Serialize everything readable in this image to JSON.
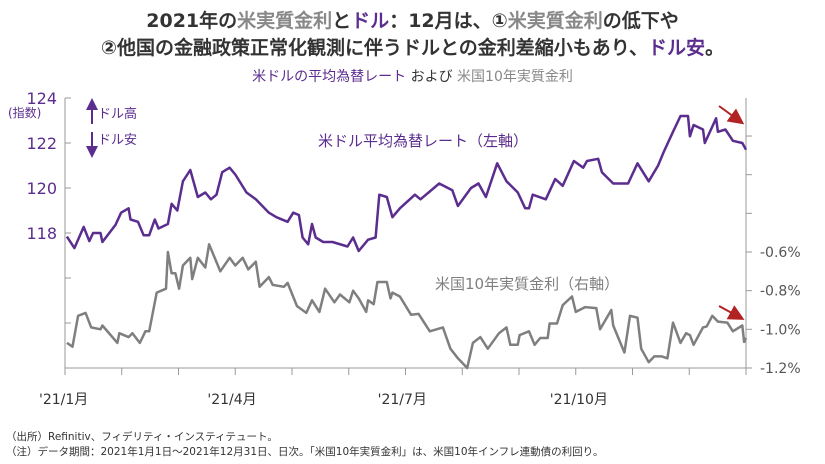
{
  "title": {
    "line1": [
      {
        "text": "2021年の",
        "c": "d"
      },
      {
        "text": "米実質金利",
        "c": "g"
      },
      {
        "text": "と",
        "c": "d"
      },
      {
        "text": "ドル",
        "c": "p"
      },
      {
        "text": "：12月は、①",
        "c": "d"
      },
      {
        "text": "米実質金利",
        "c": "g"
      },
      {
        "text": "の低下や",
        "c": "d"
      }
    ],
    "line2": [
      {
        "text": "②他国の金融政策正常化観測に伴うドルとの金利差縮小もあり、",
        "c": "d"
      },
      {
        "text": "ドル安",
        "c": "p"
      },
      {
        "text": "。",
        "c": "d"
      }
    ]
  },
  "subtitle": {
    "part1": "米ドルの平均為替レート",
    "part2": " および ",
    "part3": "米国10年実質金利"
  },
  "annotations": {
    "unit_left": "(指数)",
    "dollar_up": "ドル高",
    "dollar_down": "ドル安",
    "arrow_color": "#b22222"
  },
  "footnotes": [
    "（出所）Refinitiv、フィデリティ・インスティテュート。",
    "（注）データ期間：2021年1月1日～2021年12月31日、日次。「米国10年実質金利」は、米国10年インフレ連動債の利回り。"
  ],
  "chart_data": {
    "type": "line",
    "x_unit": "day of year 2021",
    "xlim": [
      0,
      364
    ],
    "x_ticks": [
      {
        "day": 0,
        "label": "'21/1月"
      },
      {
        "day": 90,
        "label": "'21/4月"
      },
      {
        "day": 181,
        "label": "'21/7月"
      },
      {
        "day": 273,
        "label": "'21/10月"
      }
    ],
    "left_axis": {
      "ylim": [
        112,
        124
      ],
      "ticks": [
        {
          "v": 124,
          "label": "124"
        },
        {
          "v": 122,
          "label": "122"
        },
        {
          "v": 120,
          "label": "120"
        },
        {
          "v": 118,
          "label": "118"
        }
      ],
      "label": "(指数)"
    },
    "right_axis": {
      "ylim": [
        -1.2,
        0.2
      ],
      "ticks": [
        {
          "v": -0.6,
          "label": "-0.6%"
        },
        {
          "v": -0.8,
          "label": "-0.8%"
        },
        {
          "v": -1.0,
          "label": "-1.0%"
        },
        {
          "v": -1.2,
          "label": "-1.2%"
        }
      ]
    },
    "series": [
      {
        "name": "米ドル平均為替レート（左軸）",
        "axis": "left",
        "color": "#5b2d8e",
        "x": [
          1,
          5,
          10,
          13,
          15,
          19,
          20,
          27,
          30,
          34,
          35,
          39,
          42,
          45,
          48,
          50,
          55,
          57,
          60,
          63,
          67,
          71,
          75,
          78,
          81,
          84,
          88,
          91,
          97,
          102,
          109,
          113,
          119,
          122,
          125,
          127,
          130,
          132,
          134,
          138,
          143,
          151,
          154,
          157,
          162,
          166,
          168,
          172,
          175,
          179,
          187,
          190,
          200,
          207,
          210,
          217,
          221,
          225,
          231,
          236,
          242,
          246,
          248,
          250,
          257,
          262,
          266,
          272,
          277,
          279,
          285,
          287,
          293,
          301,
          306,
          312,
          317,
          320,
          325,
          329,
          333,
          334,
          336,
          341,
          342,
          348,
          349,
          353,
          357,
          362,
          364
        ],
        "y": [
          117.84,
          117.33,
          118.27,
          117.64,
          118,
          118,
          117.6,
          118.36,
          118.9,
          119.1,
          118.6,
          118.5,
          117.9,
          117.9,
          118.6,
          118.2,
          118.4,
          119.3,
          119.0,
          120.3,
          120.8,
          119.6,
          119.8,
          119.5,
          119.7,
          120.7,
          120.9,
          120.6,
          119.8,
          119.5,
          118.9,
          118.7,
          118.5,
          118.9,
          118.8,
          117.8,
          117.5,
          118.4,
          117.8,
          117.6,
          117.6,
          117.4,
          117.8,
          117.2,
          117.7,
          117.8,
          119.7,
          119.6,
          118.7,
          119.1,
          119.7,
          119.5,
          120.2,
          119.9,
          119.2,
          120.0,
          120.2,
          119.6,
          121.1,
          120.3,
          119.8,
          119.1,
          119.1,
          119.7,
          119.5,
          120.4,
          120.1,
          121.2,
          120.9,
          121.2,
          121.3,
          120.7,
          120.2,
          120.2,
          121.1,
          120.3,
          121.0,
          121.6,
          122.5,
          123.2,
          123.2,
          122.3,
          122.8,
          122.6,
          122.0,
          123.1,
          122.5,
          122.6,
          122.1,
          122.0,
          121.7
        ]
      },
      {
        "name": "米国10年実質金利（右軸）",
        "axis": "right",
        "color": "#7f7f7f",
        "x": [
          1,
          4,
          7,
          11,
          14,
          19,
          20,
          28,
          29,
          34,
          36,
          40,
          43,
          45,
          49,
          54,
          55,
          57,
          59,
          61,
          63,
          67,
          68,
          71,
          75,
          77,
          83,
          88,
          91,
          95,
          98,
          102,
          104,
          109,
          111,
          117,
          119,
          124,
          129,
          132,
          136,
          139,
          144,
          147,
          152,
          154,
          157,
          161,
          162,
          165,
          167,
          172,
          174,
          175,
          179,
          185,
          189,
          195,
          202,
          206,
          210,
          215,
          218,
          222,
          226,
          232,
          236,
          238,
          242,
          243,
          248,
          251,
          254,
          258,
          259,
          263,
          266,
          271,
          273,
          278,
          284,
          286,
          292,
          293,
          299,
          302,
          306,
          308,
          312,
          315,
          319,
          322,
          325,
          329,
          332,
          334,
          336,
          341,
          343,
          346,
          349,
          354,
          357,
          362,
          363,
          364
        ],
        "y": [
          -1.07,
          -1.09,
          -0.93,
          -0.915,
          -0.99,
          -1.0,
          -0.98,
          -1.07,
          -1.02,
          -1.04,
          -1.02,
          -1.07,
          -1.01,
          -1.01,
          -0.81,
          -0.79,
          -0.6,
          -0.71,
          -0.71,
          -0.79,
          -0.67,
          -0.63,
          -0.74,
          -0.63,
          -0.68,
          -0.56,
          -0.7,
          -0.63,
          -0.67,
          -0.63,
          -0.69,
          -0.65,
          -0.78,
          -0.73,
          -0.77,
          -0.78,
          -0.76,
          -0.88,
          -0.915,
          -0.85,
          -0.91,
          -0.79,
          -0.86,
          -0.82,
          -0.86,
          -0.8,
          -0.84,
          -0.91,
          -0.85,
          -0.87,
          -0.755,
          -0.755,
          -0.84,
          -0.81,
          -0.83,
          -0.925,
          -0.92,
          -1.01,
          -0.99,
          -1.1,
          -1.15,
          -1.2,
          -1.07,
          -1.04,
          -1.1,
          -1.02,
          -0.99,
          -1.08,
          -1.08,
          -1.03,
          -1.01,
          -1.08,
          -1.045,
          -1.045,
          -0.97,
          -0.97,
          -0.875,
          -0.83,
          -0.91,
          -0.885,
          -0.89,
          -1.0,
          -0.9,
          -0.98,
          -1.12,
          -0.93,
          -0.94,
          -1.1,
          -1.17,
          -1.14,
          -1.14,
          -1.15,
          -0.965,
          -1.07,
          -1.02,
          -1.03,
          -1.08,
          -0.99,
          -0.985,
          -0.93,
          -0.96,
          -0.965,
          -1.01,
          -0.98,
          -1.065,
          -1.045
        ]
      }
    ]
  }
}
